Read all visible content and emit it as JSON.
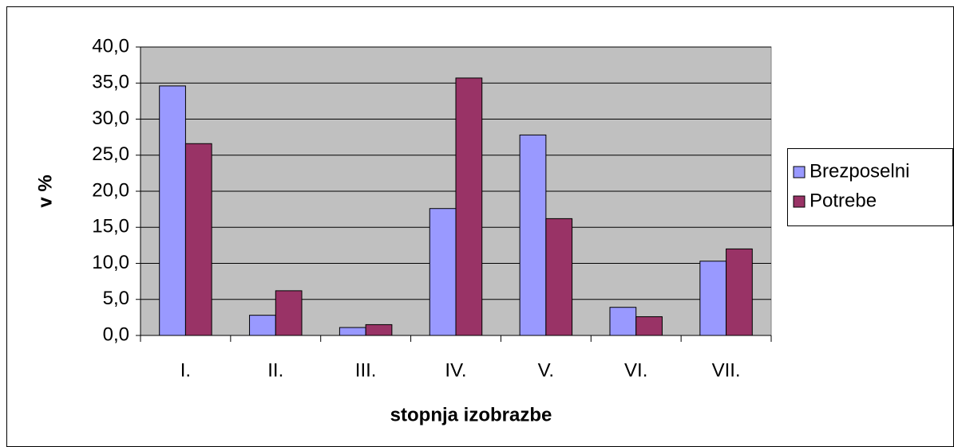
{
  "chart_data": {
    "type": "bar",
    "x_label": "stopnja izobrazbe",
    "y_label": "v %",
    "categories": [
      "I.",
      "II.",
      "III.",
      "IV.",
      "V.",
      "VI.",
      "VII."
    ],
    "series": [
      {
        "name": "Brezposelni",
        "color": "#9999ff",
        "values": [
          34.6,
          2.8,
          1.1,
          17.6,
          27.8,
          3.9,
          10.3
        ]
      },
      {
        "name": "Potrebe",
        "color": "#993366",
        "values": [
          26.6,
          6.2,
          1.5,
          35.7,
          16.2,
          2.6,
          12.0
        ]
      }
    ],
    "ylim": [
      0,
      40
    ],
    "yticks": [
      {
        "value": 0,
        "label": "0,0"
      },
      {
        "value": 5,
        "label": "5,0"
      },
      {
        "value": 10,
        "label": "10,0"
      },
      {
        "value": 15,
        "label": "15,0"
      },
      {
        "value": 20,
        "label": "20,0"
      },
      {
        "value": 25,
        "label": "25,0"
      },
      {
        "value": 30,
        "label": "30,0"
      },
      {
        "value": 35,
        "label": "35,0"
      },
      {
        "value": 40,
        "label": "40,0"
      }
    ],
    "grid": true,
    "plot_background": "#c0c0c0",
    "legend": "right"
  }
}
